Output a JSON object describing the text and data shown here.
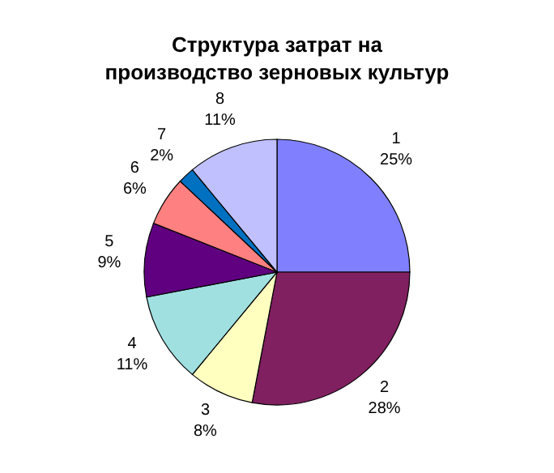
{
  "chart_data": {
    "type": "pie",
    "title": "Структура затрат на производство зерновых культур",
    "categories": [
      "1",
      "2",
      "3",
      "4",
      "5",
      "6",
      "7",
      "8"
    ],
    "values": [
      25,
      28,
      8,
      11,
      9,
      6,
      2,
      11
    ],
    "value_labels": [
      "25%",
      "28%",
      "8%",
      "11%",
      "9%",
      "6%",
      "2%",
      "11%"
    ],
    "colors": [
      "#8080ff",
      "#802060",
      "#ffffc0",
      "#a0e0e0",
      "#600080",
      "#ff8080",
      "#0070c0",
      "#c0c0ff"
    ]
  }
}
